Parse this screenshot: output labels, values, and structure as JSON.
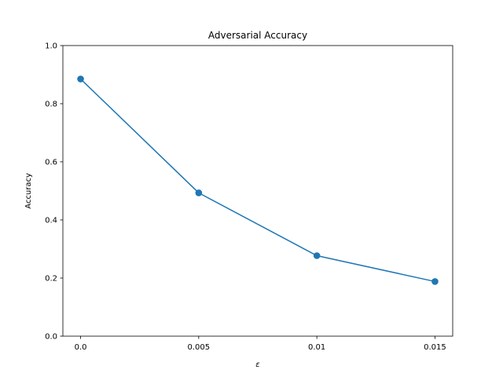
{
  "chart_data": {
    "type": "line",
    "title": "Adversarial Accuracy",
    "xlabel": "ε",
    "ylabel": "Accuracy",
    "x": [
      0.0,
      0.005,
      0.01,
      0.015
    ],
    "series": [
      {
        "values": [
          0.885,
          0.493,
          0.277,
          0.188
        ]
      }
    ],
    "x_ticks": [
      {
        "value": 0.0,
        "label": "0.0"
      },
      {
        "value": 0.005,
        "label": "0.005"
      },
      {
        "value": 0.01,
        "label": "0.01"
      },
      {
        "value": 0.015,
        "label": "0.015"
      }
    ],
    "y_ticks": [
      {
        "value": 0.0,
        "label": "0.0"
      },
      {
        "value": 0.2,
        "label": "0.2"
      },
      {
        "value": 0.4,
        "label": "0.4"
      },
      {
        "value": 0.6,
        "label": "0.6"
      },
      {
        "value": 0.8,
        "label": "0.8"
      },
      {
        "value": 1.0,
        "label": "1.0"
      }
    ],
    "xlim": [
      -0.00075,
      0.01575
    ],
    "ylim": [
      0.0,
      1.0
    ],
    "grid": false,
    "markers": true,
    "color": "#1f77b4"
  }
}
